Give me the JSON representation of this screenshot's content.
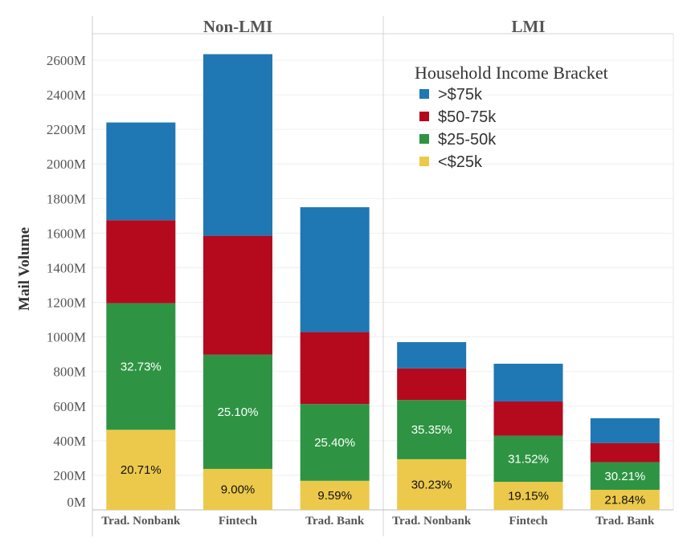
{
  "chart_data": {
    "type": "bar",
    "stacked": true,
    "ylabel": "Mail Volume",
    "ylim": [
      0,
      2700
    ],
    "yticks": [
      "0M",
      "200M",
      "400M",
      "600M",
      "800M",
      "1000M",
      "1200M",
      "1400M",
      "1600M",
      "1800M",
      "2000M",
      "2200M",
      "2400M",
      "2600M"
    ],
    "grid": true,
    "legend": {
      "title": "Household Income Bracket",
      "placement": "top-right",
      "entries": [
        ">$75k",
        "$50-75k",
        "$25-50k",
        "<$25k"
      ]
    },
    "series_order": [
      "<$25k",
      "$25-50k",
      "$50-75k",
      ">$75k"
    ],
    "colors": {
      ">$75k": "#1f77b4",
      "$50-75k": "#b5091e",
      "$25-50k": "#2e9443",
      "<$25k": "#ecc94b"
    },
    "panels": [
      {
        "title": "Non-LMI",
        "categories": [
          "Trad. Nonbank",
          "Fintech",
          "Trad. Bank"
        ],
        "series": [
          {
            "name": "<$25k",
            "values": [
              463,
              237,
              168
            ]
          },
          {
            "name": "$25-50k",
            "values": [
              732,
              660,
              444
            ]
          },
          {
            "name": "$50-75k",
            "values": [
              480,
              688,
              416
            ]
          },
          {
            "name": ">$75k",
            "values": [
              565,
              1050,
              722
            ]
          }
        ],
        "labels": {
          "<$25k": [
            "20.71%",
            "9.00%",
            "9.59%"
          ],
          "$25-50k": [
            "32.73%",
            "25.10%",
            "25.40%"
          ]
        }
      },
      {
        "title": "LMI",
        "categories": [
          "Trad. Nonbank",
          "Fintech",
          "Trad. Bank"
        ],
        "series": [
          {
            "name": "<$25k",
            "values": [
              293,
              162,
              116
            ]
          },
          {
            "name": "$25-50k",
            "values": [
              342,
              267,
              160
            ]
          },
          {
            "name": "$50-75k",
            "values": [
              183,
              198,
              110
            ]
          },
          {
            "name": ">$75k",
            "values": [
              152,
              218,
              144
            ]
          }
        ],
        "labels": {
          "<$25k": [
            "30.23%",
            "19.15%",
            "21.84%"
          ],
          "$25-50k": [
            "35.35%",
            "31.52%",
            "30.21%"
          ]
        }
      }
    ]
  }
}
